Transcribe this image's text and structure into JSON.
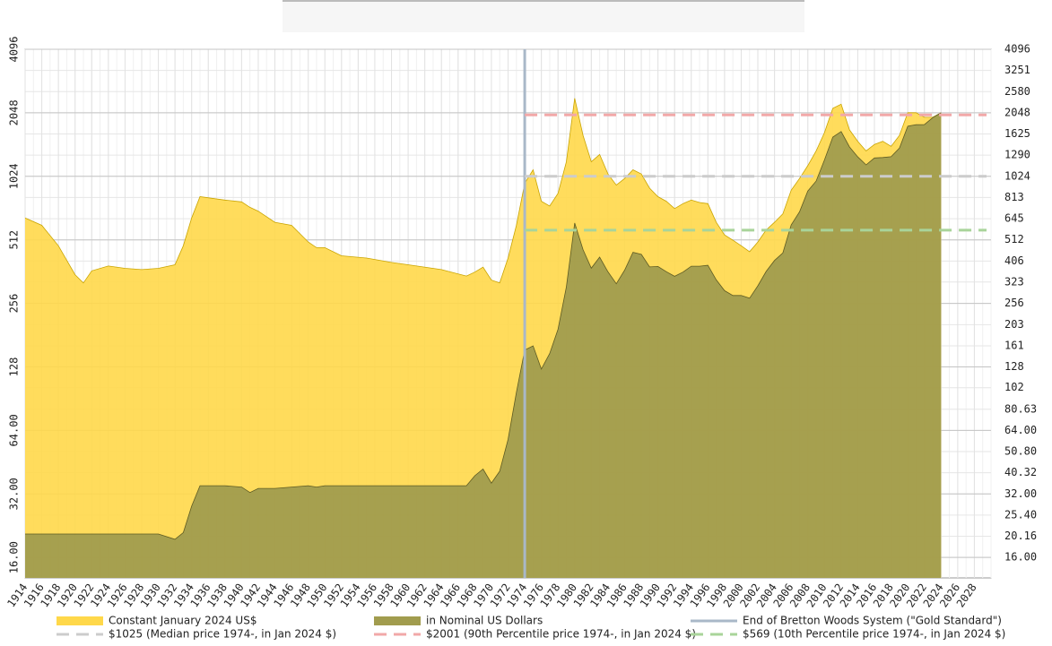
{
  "chart_data": {
    "type": "area",
    "log_scale": true,
    "grid": true,
    "legend": "bottom",
    "xlim": [
      1914,
      2030
    ],
    "xticks": [
      1914,
      1916,
      1918,
      1920,
      1922,
      1924,
      1926,
      1928,
      1930,
      1932,
      1934,
      1936,
      1938,
      1940,
      1942,
      1944,
      1946,
      1948,
      1950,
      1952,
      1954,
      1956,
      1958,
      1960,
      1962,
      1964,
      1966,
      1968,
      1970,
      1972,
      1974,
      1976,
      1978,
      1980,
      1982,
      1984,
      1986,
      1988,
      1990,
      1992,
      1994,
      1996,
      1998,
      2000,
      2002,
      2004,
      2006,
      2008,
      2010,
      2012,
      2014,
      2016,
      2018,
      2020,
      2022,
      2024,
      2026,
      2028
    ],
    "ylim": [
      12.8,
      4096
    ],
    "yticks": [
      {
        "value": 16,
        "label": "16.00"
      },
      {
        "value": 32,
        "label": "32.00"
      },
      {
        "value": 64,
        "label": "64.00"
      },
      128,
      256,
      512,
      1024,
      2048,
      4096
    ],
    "y2lim": [
      12.8,
      4096
    ],
    "y2ticks": [
      {
        "value": 16,
        "label": "16.00"
      },
      20.16,
      {
        "value": 25.4,
        "label": "25.40"
      },
      {
        "value": 32,
        "label": "32.00"
      },
      40.32,
      {
        "value": 50.8,
        "label": "50.80"
      },
      {
        "value": 64,
        "label": "64.00"
      },
      80.63,
      102,
      128,
      161,
      203,
      256,
      323,
      406,
      512,
      645,
      813,
      1024,
      1290,
      1625,
      2048,
      2580,
      3251,
      4096
    ],
    "x": [
      1914,
      1916,
      1918,
      1920,
      1921,
      1922,
      1924,
      1926,
      1928,
      1930,
      1932,
      1933,
      1934,
      1935,
      1938,
      1940,
      1941,
      1942,
      1944,
      1946,
      1948,
      1949,
      1950,
      1952,
      1955,
      1958,
      1960,
      1964,
      1967,
      1968,
      1969,
      1970,
      1971,
      1972,
      1973,
      1974,
      1975,
      1976,
      1977,
      1978,
      1979,
      1980,
      1981,
      1982,
      1983,
      1984,
      1985,
      1986,
      1987,
      1988,
      1989,
      1990,
      1991,
      1992,
      1993,
      1994,
      1995,
      1996,
      1997,
      1998,
      1999,
      2000,
      2001,
      2002,
      2003,
      2004,
      2005,
      2006,
      2007,
      2008,
      2009,
      2010,
      2011,
      2012,
      2013,
      2014,
      2015,
      2016,
      2017,
      2018,
      2019,
      2020,
      2021,
      2022,
      2023,
      2024
    ],
    "series": [
      {
        "name": "Constant January 2024 US$",
        "color": "#ffd84a",
        "edge": "#c9a400",
        "values": [
          650,
          600,
          480,
          350,
          320,
          365,
          385,
          375,
          370,
          375,
          390,
          480,
          650,
          820,
          790,
          775,
          730,
          700,
          620,
          600,
          500,
          470,
          470,
          430,
          420,
          400,
          390,
          370,
          345,
          360,
          380,
          330,
          320,
          420,
          600,
          950,
          1100,
          780,
          740,
          850,
          1200,
          2400,
          1600,
          1200,
          1300,
          1050,
          930,
          1000,
          1100,
          1050,
          900,
          820,
          780,
          720,
          760,
          790,
          770,
          760,
          620,
          540,
          510,
          480,
          450,
          500,
          570,
          620,
          680,
          880,
          1000,
          1150,
          1350,
          1650,
          2150,
          2250,
          1700,
          1500,
          1350,
          1450,
          1500,
          1420,
          1600,
          2050,
          2050,
          1950,
          1950,
          2050
        ]
      },
      {
        "name": "in Nominal US Dollars",
        "color": "#a19c4e",
        "edge": "#5e5b22",
        "values": [
          20.67,
          20.67,
          20.67,
          20.67,
          20.67,
          20.67,
          20.67,
          20.67,
          20.67,
          20.67,
          19.5,
          21,
          28,
          35,
          35,
          34.5,
          32.5,
          34,
          34,
          34.5,
          35,
          34.5,
          35,
          35,
          35,
          35,
          35,
          35,
          35,
          39,
          42,
          36,
          41,
          58,
          97,
          154,
          161,
          125,
          148,
          193,
          306,
          615,
          460,
          376,
          424,
          361,
          317,
          368,
          447,
          437,
          381,
          383,
          362,
          344,
          360,
          384,
          384,
          388,
          331,
          294,
          279,
          279,
          271,
          310,
          363,
          409,
          444,
          603,
          695,
          872,
          972,
          1225,
          1572,
          1669,
          1411,
          1266,
          1160,
          1251,
          1257,
          1268,
          1393,
          1770,
          1799,
          1800,
          1943,
          2050
        ]
      }
    ],
    "vlines": [
      {
        "name": "End of Bretton Woods System (\"Gold Standard\")",
        "x": 1974,
        "color": "#a9b8c8"
      }
    ],
    "hlines": [
      {
        "name": "$1025 (Median price 1974-, in Jan 2024 $)",
        "value": 1025,
        "x": 1974,
        "color": "#cccccc"
      },
      {
        "name": "$2001 (90th Percentile price 1974-, in Jan 2024 $)",
        "value": 2001,
        "x": 1974,
        "color": "#f2a8a8"
      },
      {
        "name": "$569 (10th Percentile price 1974-, in Jan 2024 $)",
        "value": 569,
        "x": 1974,
        "color": "#a9d49a"
      }
    ]
  }
}
